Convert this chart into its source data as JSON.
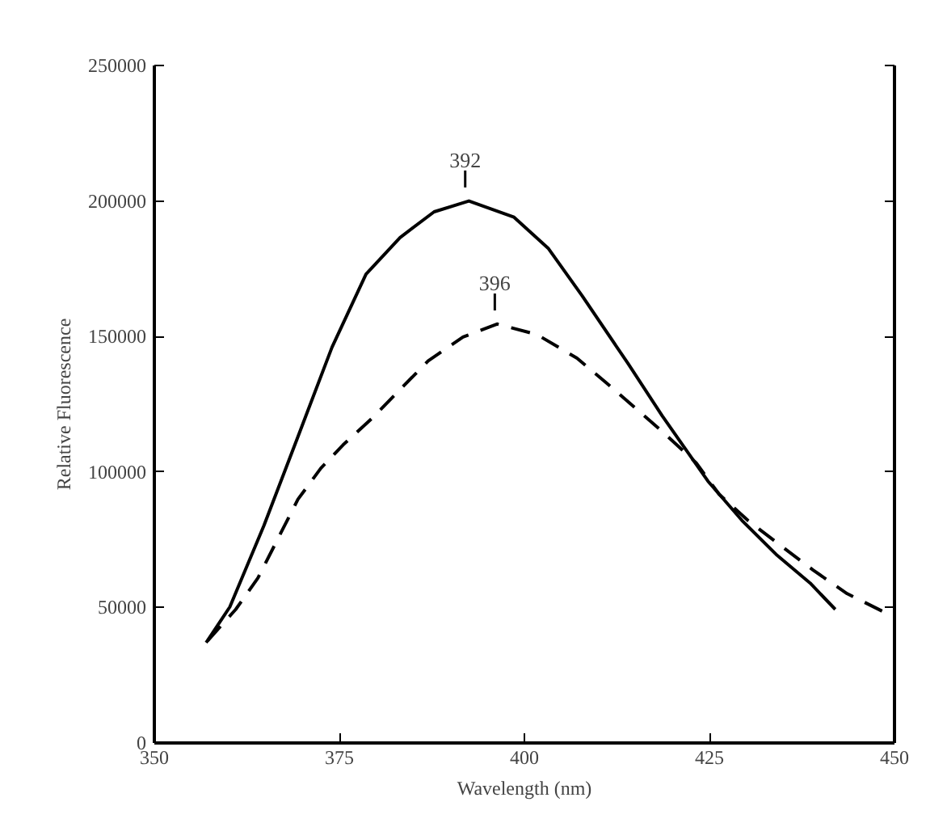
{
  "chart_data": {
    "type": "line",
    "xlabel": "Wavelength (nm)",
    "ylabel": "Relative Fluorescence",
    "xlim": [
      350,
      450
    ],
    "xticks": [
      350,
      375,
      400,
      425,
      450
    ],
    "ylim": [
      0,
      250000
    ],
    "yticks": [
      0,
      50000,
      100000,
      150000,
      200000,
      250000
    ],
    "grid": false,
    "marker": "none",
    "series": [
      {
        "color": "#000000",
        "line_style": "solid",
        "x": [
          357,
          360.2,
          364.8,
          369.4,
          374,
          378.6,
          383.2,
          387.8,
          392.5,
          398.6,
          403.2,
          407.8,
          414,
          418.6,
          424.8,
          429.4,
          434,
          438.6,
          442
        ],
        "values": [
          37000,
          50200,
          80200,
          113000,
          146000,
          173000,
          186500,
          196000,
          200000,
          194000,
          182600,
          165000,
          140000,
          120800,
          96600,
          82100,
          69600,
          59000,
          49300
        ]
      },
      {
        "color": "#000000",
        "line_style": "dashed",
        "x": [
          357.2,
          361,
          364,
          369.4,
          372.5,
          375.5,
          379.4,
          383.2,
          387,
          391.7,
          396.3,
          401.7,
          407.1,
          410.9,
          415.2,
          419,
          423.2,
          426.3,
          430.2,
          434.8,
          439,
          443.6,
          448.6
        ],
        "values": [
          37700,
          49300,
          60900,
          89900,
          101400,
          110000,
          119800,
          130400,
          141000,
          149800,
          154600,
          150700,
          142000,
          133300,
          123100,
          114000,
          103400,
          91800,
          82100,
          72500,
          63800,
          55100,
          48300
        ]
      }
    ],
    "annotations": [
      {
        "text": "392",
        "x": 392,
        "y": 200000
      },
      {
        "text": "396",
        "x": 396,
        "y": 154600
      }
    ]
  }
}
